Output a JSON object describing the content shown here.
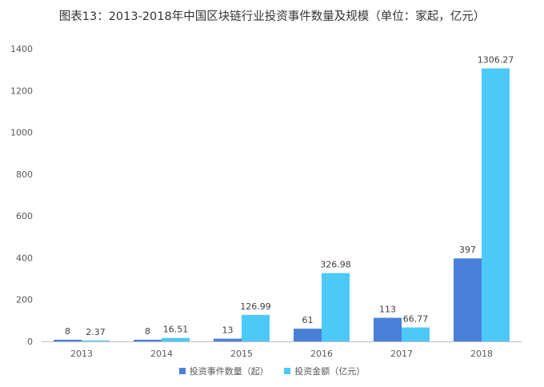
{
  "colors": {
    "events": "#4a80d8",
    "amount": "#4cc9f7",
    "axis": "#bfbfbf",
    "text": "#595959"
  },
  "chart_data": {
    "type": "bar",
    "title": "图表13：2013-2018年中国区块链行业投资事件数量及规模（单位：家起，亿元）",
    "categories": [
      "2013",
      "2014",
      "2015",
      "2016",
      "2017",
      "2018"
    ],
    "series": [
      {
        "name": "投资事件数量（起）",
        "values": [
          8,
          8,
          13,
          61,
          113,
          397
        ],
        "labels": [
          "8",
          "8",
          "13",
          "61",
          "113",
          "397"
        ]
      },
      {
        "name": "投资金额（亿元）",
        "values": [
          2.37,
          16.51,
          126.99,
          326.98,
          66.77,
          1306.27
        ],
        "labels": [
          "2.37",
          "16.51",
          "126.99",
          "326.98",
          "66.77",
          "1306.27"
        ]
      }
    ],
    "yticks": [
      "0",
      "200",
      "400",
      "600",
      "800",
      "1000",
      "1200",
      "1400"
    ],
    "ylim": [
      0,
      1400
    ],
    "xlabel": "",
    "ylabel": "",
    "grid": false,
    "legend_position": "bottom"
  }
}
